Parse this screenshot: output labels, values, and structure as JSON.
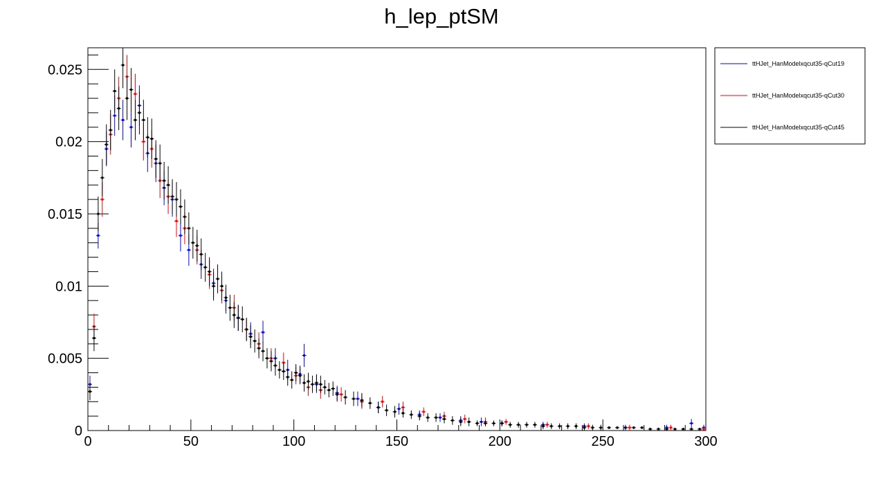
{
  "chart_data": {
    "type": "scatter",
    "title": "h_lep_ptSM",
    "xlabel": "",
    "ylabel": "",
    "xlim": [
      0,
      300
    ],
    "ylim": [
      0,
      0.0265
    ],
    "x_ticks": [
      0,
      50,
      100,
      150,
      200,
      250,
      300
    ],
    "y_ticks": [
      0,
      0.005,
      0.01,
      0.015,
      0.02,
      0.025
    ],
    "x_tick_labels": [
      "0",
      "50",
      "100",
      "150",
      "200",
      "250",
      "300"
    ],
    "y_tick_labels": [
      "0",
      "0.005",
      "0.01",
      "0.015",
      "0.02",
      "0.025"
    ],
    "bin_width": 2,
    "grid": false,
    "legend_position": "top-right-outside",
    "series": [
      {
        "name": "ttHJet_HanModelxqcut35-qCut19",
        "color": "#0000ff",
        "x": [
          1,
          5,
          9,
          13,
          17,
          21,
          25,
          29,
          33,
          37,
          41,
          45,
          49,
          55,
          61,
          67,
          73,
          79,
          85,
          91,
          97,
          103,
          105,
          111,
          121,
          131,
          141,
          151,
          161,
          171,
          181,
          191,
          201,
          221,
          241,
          261,
          281,
          293,
          299
        ],
        "y": [
          0.0032,
          0.0135,
          0.0195,
          0.0218,
          0.0215,
          0.021,
          0.0225,
          0.0192,
          0.0185,
          0.0168,
          0.016,
          0.0135,
          0.0125,
          0.0115,
          0.0102,
          0.009,
          0.0078,
          0.0067,
          0.0068,
          0.005,
          0.0042,
          0.0039,
          0.0052,
          0.0032,
          0.0026,
          0.0022,
          0.0016,
          0.0015,
          0.0011,
          0.0009,
          0.0007,
          0.0006,
          0.0005,
          0.0004,
          0.0003,
          0.0002,
          0.0002,
          0.0005,
          0.0002
        ],
        "err": [
          0.0006,
          0.0009,
          0.0012,
          0.0014,
          0.0014,
          0.0014,
          0.0014,
          0.0013,
          0.0013,
          0.0012,
          0.0012,
          0.0011,
          0.0011,
          0.001,
          0.001,
          0.0009,
          0.0009,
          0.0008,
          0.0008,
          0.0007,
          0.0007,
          0.0006,
          0.0008,
          0.0006,
          0.0005,
          0.0005,
          0.0004,
          0.0004,
          0.0003,
          0.0003,
          0.0003,
          0.0003,
          0.0002,
          0.0002,
          0.0002,
          0.0002,
          0.0002,
          0.0003,
          0.0002
        ]
      },
      {
        "name": "ttHJet_HanModelxqcut35-qCut30",
        "color": "#ff0000",
        "x": [
          1,
          3,
          7,
          11,
          15,
          19,
          23,
          27,
          31,
          35,
          39,
          43,
          47,
          53,
          59,
          65,
          71,
          77,
          83,
          89,
          95,
          101,
          107,
          113,
          123,
          133,
          143,
          153,
          163,
          173,
          183,
          193,
          203,
          223,
          243,
          263,
          283,
          299
        ],
        "y": [
          0.0027,
          0.0072,
          0.016,
          0.0205,
          0.023,
          0.0245,
          0.0233,
          0.02,
          0.0195,
          0.0173,
          0.0162,
          0.0145,
          0.014,
          0.0125,
          0.0108,
          0.0097,
          0.0085,
          0.007,
          0.006,
          0.005,
          0.0047,
          0.0038,
          0.003,
          0.0028,
          0.0025,
          0.002,
          0.002,
          0.0016,
          0.0013,
          0.001,
          0.0008,
          0.0006,
          0.0006,
          0.0004,
          0.0003,
          0.0002,
          0.0002,
          0.0001
        ],
        "err": [
          0.0006,
          0.0009,
          0.0012,
          0.0014,
          0.0015,
          0.0015,
          0.0014,
          0.0013,
          0.0013,
          0.0012,
          0.0012,
          0.0011,
          0.0011,
          0.001,
          0.001,
          0.0009,
          0.0009,
          0.0008,
          0.0008,
          0.0007,
          0.0007,
          0.0006,
          0.0006,
          0.0006,
          0.0005,
          0.0005,
          0.0004,
          0.0004,
          0.0003,
          0.0003,
          0.0003,
          0.0003,
          0.0002,
          0.0002,
          0.0002,
          0.0002,
          0.0002,
          0.0001
        ]
      },
      {
        "name": "ttHJet_HanModelxqcut35-qCut45",
        "color": "#000000",
        "x": [
          1,
          3,
          5,
          7,
          9,
          11,
          13,
          15,
          17,
          19,
          21,
          23,
          25,
          27,
          29,
          31,
          33,
          35,
          37,
          39,
          41,
          43,
          45,
          47,
          49,
          51,
          53,
          55,
          57,
          59,
          61,
          63,
          65,
          67,
          69,
          71,
          73,
          75,
          77,
          79,
          81,
          83,
          85,
          87,
          89,
          91,
          93,
          95,
          97,
          99,
          101,
          103,
          105,
          107,
          109,
          111,
          113,
          115,
          117,
          119,
          121,
          125,
          129,
          133,
          137,
          141,
          145,
          149,
          153,
          157,
          161,
          165,
          169,
          173,
          177,
          181,
          185,
          189,
          193,
          197,
          201,
          205,
          209,
          213,
          217,
          221,
          225,
          229,
          233,
          237,
          241,
          245,
          249,
          253,
          257,
          261,
          265,
          269,
          273,
          277,
          281,
          285,
          289,
          293,
          297
        ],
        "y": [
          0.0027,
          0.0064,
          0.015,
          0.0175,
          0.0198,
          0.0208,
          0.0235,
          0.0223,
          0.0253,
          0.023,
          0.0236,
          0.0215,
          0.022,
          0.0215,
          0.0203,
          0.0202,
          0.0188,
          0.0185,
          0.0173,
          0.017,
          0.0162,
          0.016,
          0.0155,
          0.0148,
          0.014,
          0.013,
          0.0128,
          0.0122,
          0.0113,
          0.011,
          0.01,
          0.0105,
          0.01,
          0.0092,
          0.0085,
          0.008,
          0.0078,
          0.0077,
          0.007,
          0.0065,
          0.0062,
          0.0057,
          0.0055,
          0.005,
          0.0048,
          0.0045,
          0.0042,
          0.0041,
          0.0037,
          0.0035,
          0.004,
          0.0038,
          0.0033,
          0.0034,
          0.0032,
          0.0033,
          0.0032,
          0.003,
          0.0028,
          0.0029,
          0.0025,
          0.0023,
          0.0022,
          0.0021,
          0.0019,
          0.0016,
          0.0014,
          0.0013,
          0.0012,
          0.0011,
          0.001,
          0.0009,
          0.0009,
          0.0008,
          0.0007,
          0.0006,
          0.0006,
          0.0005,
          0.0005,
          0.0005,
          0.0005,
          0.0004,
          0.0004,
          0.0004,
          0.0004,
          0.0003,
          0.0003,
          0.0003,
          0.0003,
          0.0003,
          0.0002,
          0.0002,
          0.0002,
          0.0002,
          0.0002,
          0.0002,
          0.0002,
          0.0002,
          0.0001,
          0.0001,
          0.0001,
          0.0001,
          0.0001,
          0.0001,
          0.0001
        ],
        "err": [
          0.0006,
          0.0009,
          0.0012,
          0.0013,
          0.0014,
          0.0014,
          0.0015,
          0.0015,
          0.0016,
          0.0015,
          0.0015,
          0.0014,
          0.0015,
          0.0014,
          0.0014,
          0.0014,
          0.0013,
          0.0013,
          0.0013,
          0.0013,
          0.0012,
          0.0012,
          0.0012,
          0.0012,
          0.0011,
          0.0011,
          0.0011,
          0.0011,
          0.001,
          0.001,
          0.001,
          0.001,
          0.001,
          0.0009,
          0.0009,
          0.0009,
          0.0009,
          0.0009,
          0.0008,
          0.0008,
          0.0008,
          0.0007,
          0.0007,
          0.0007,
          0.0007,
          0.0007,
          0.0006,
          0.0006,
          0.0006,
          0.0006,
          0.0006,
          0.0006,
          0.0006,
          0.0006,
          0.0006,
          0.0006,
          0.0006,
          0.0005,
          0.0005,
          0.0005,
          0.0005,
          0.0005,
          0.0005,
          0.0005,
          0.0004,
          0.0004,
          0.0004,
          0.0004,
          0.0003,
          0.0003,
          0.0003,
          0.0003,
          0.0003,
          0.0003,
          0.0003,
          0.0003,
          0.0003,
          0.0002,
          0.0002,
          0.0002,
          0.0002,
          0.0002,
          0.0002,
          0.0002,
          0.0002,
          0.0002,
          0.0002,
          0.0002,
          0.0002,
          0.0002,
          0.0002,
          0.0002,
          0.0002,
          0.0001,
          0.0001,
          0.0001,
          0.0001,
          0.0001,
          0.0001,
          0.0001,
          0.0001,
          0.0001,
          0.0001,
          0.0001,
          0.0001
        ]
      }
    ]
  }
}
